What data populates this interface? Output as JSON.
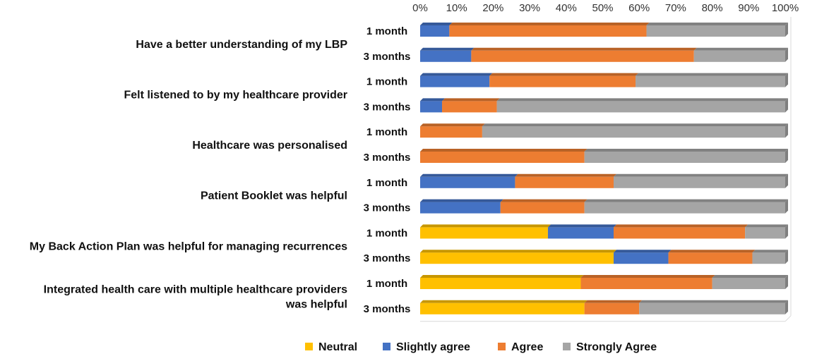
{
  "chart_data": {
    "type": "bar",
    "orientation": "horizontal",
    "stacked": true,
    "percent_stacked": true,
    "x_ticks": [
      "0%",
      "10%",
      "20%",
      "30%",
      "40%",
      "50%",
      "60%",
      "70%",
      "80%",
      "90%",
      "100%"
    ],
    "xlim": [
      0,
      100
    ],
    "grid": false,
    "legend_position": "bottom",
    "groups": [
      {
        "label": "Have a better understanding of my LBP",
        "label_lines": [
          "Have a better understanding of my LBP"
        ],
        "rows": [
          "1 month",
          "3 months"
        ]
      },
      {
        "label": "Felt listened to by my healthcare provider",
        "label_lines": [
          "Felt listened to by my healthcare provider"
        ],
        "rows": [
          "1 month",
          "3 months"
        ]
      },
      {
        "label": "Healthcare was personalised",
        "label_lines": [
          "Healthcare was personalised"
        ],
        "rows": [
          "1 month",
          "3 months"
        ]
      },
      {
        "label": "Patient Booklet was helpful",
        "label_lines": [
          "Patient Booklet was helpful"
        ],
        "rows": [
          "1 month",
          "3 months"
        ]
      },
      {
        "label": "My Back Action Plan was helpful for managing recurrences",
        "label_lines": [
          "My Back Action Plan was helpful for managing recurrences"
        ],
        "rows": [
          "1 month",
          "3 months"
        ]
      },
      {
        "label": "Integrated health care with multiple healthcare providers was helpful",
        "label_lines": [
          "Integrated health care with multiple healthcare providers",
          "was helpful"
        ],
        "rows": [
          "1 month",
          "3 months"
        ]
      }
    ],
    "series": [
      {
        "name": "Neutral",
        "color": "#FFC000",
        "values": [
          0,
          0,
          0,
          0,
          0,
          0,
          0,
          0,
          35,
          53,
          44,
          45
        ]
      },
      {
        "name": "Slightly agree",
        "color": "#4472C4",
        "values": [
          8,
          14,
          19,
          6,
          0,
          0,
          26,
          22,
          18,
          15,
          0,
          0
        ]
      },
      {
        "name": "Agree",
        "color": "#ED7D31",
        "values": [
          54,
          61,
          40,
          15,
          17,
          45,
          27,
          23,
          36,
          23,
          36,
          15
        ]
      },
      {
        "name": "Strongly Agree",
        "color": "#A5A5A5",
        "values": [
          38,
          25,
          41,
          79,
          83,
          55,
          47,
          55,
          11,
          9,
          20,
          40
        ]
      }
    ]
  }
}
